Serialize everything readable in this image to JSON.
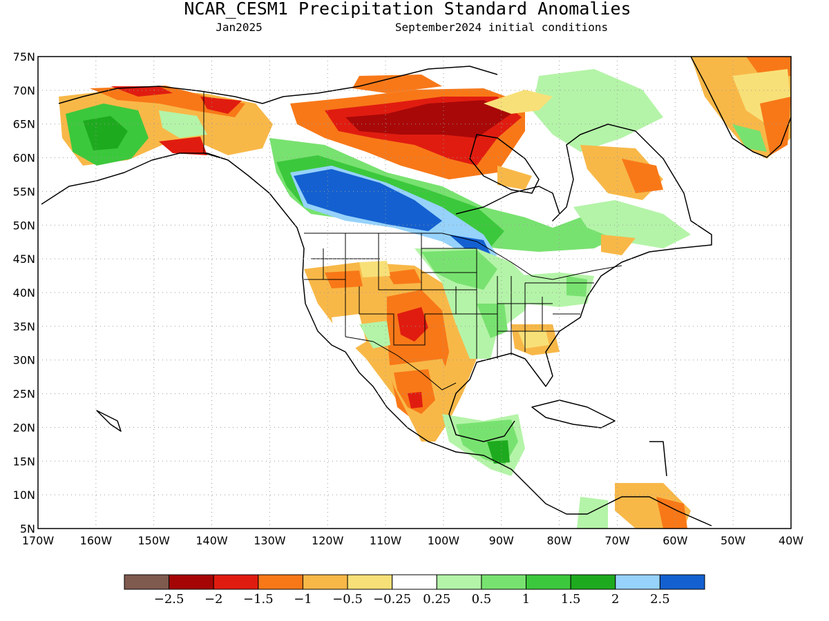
{
  "title": "NCAR_CESM1 Precipitation Standard Anomalies",
  "subtitle_left": "Jan2025",
  "subtitle_right": "September2024 initial conditions",
  "map": {
    "lon_range": [
      -170,
      -40
    ],
    "lat_range": [
      5,
      75
    ],
    "lat_labels": [
      "75N",
      "70N",
      "65N",
      "60N",
      "55N",
      "50N",
      "45N",
      "40N",
      "35N",
      "30N",
      "25N",
      "20N",
      "15N",
      "10N",
      "5N"
    ],
    "lon_labels": [
      "170W",
      "160W",
      "150W",
      "140W",
      "130W",
      "120W",
      "110W",
      "100W",
      "90W",
      "80W",
      "70W",
      "60W",
      "50W",
      "40W"
    ],
    "grid": true,
    "regions": [
      {
        "name": "alaska-west-wet",
        "category": "1 to 1.5",
        "color": "#3cc83c"
      },
      {
        "name": "alaska-north-dry",
        "category": "-2 to -1.5",
        "color": "#e01c10"
      },
      {
        "name": "yukon-dry",
        "category": "-1 to -0.5",
        "color": "#f8b848"
      },
      {
        "name": "canadian-prairies-wet",
        "category": "2.5 and above",
        "color": "#1460d0"
      },
      {
        "name": "nunavut-dry",
        "category": "-2.5 to -2",
        "color": "#a80808"
      },
      {
        "name": "southwest-us-dry",
        "category": "-1.5 to -1",
        "color": "#f87818"
      },
      {
        "name": "mexico-dry",
        "category": "-1.5 to -1",
        "color": "#f87818"
      },
      {
        "name": "central-america-wet",
        "category": "1 to 1.5",
        "color": "#3cc83c"
      },
      {
        "name": "greenland-dry",
        "category": "-1.5 to -1",
        "color": "#f87818"
      }
    ]
  },
  "colorbar": {
    "colors": [
      "#7f5a4e",
      "#a50505",
      "#e01c10",
      "#f87818",
      "#f8b848",
      "#f8e078",
      "#ffffff",
      "#b4f4a8",
      "#78e270",
      "#3cc83c",
      "#1eaa1e",
      "#96d2fa",
      "#1460d0"
    ],
    "labels": [
      "−2.5",
      "−2",
      "−1.5",
      "−1",
      "−0.5",
      "−0.25",
      "0.25",
      "0.5",
      "1",
      "1.5",
      "2",
      "2.5"
    ]
  }
}
